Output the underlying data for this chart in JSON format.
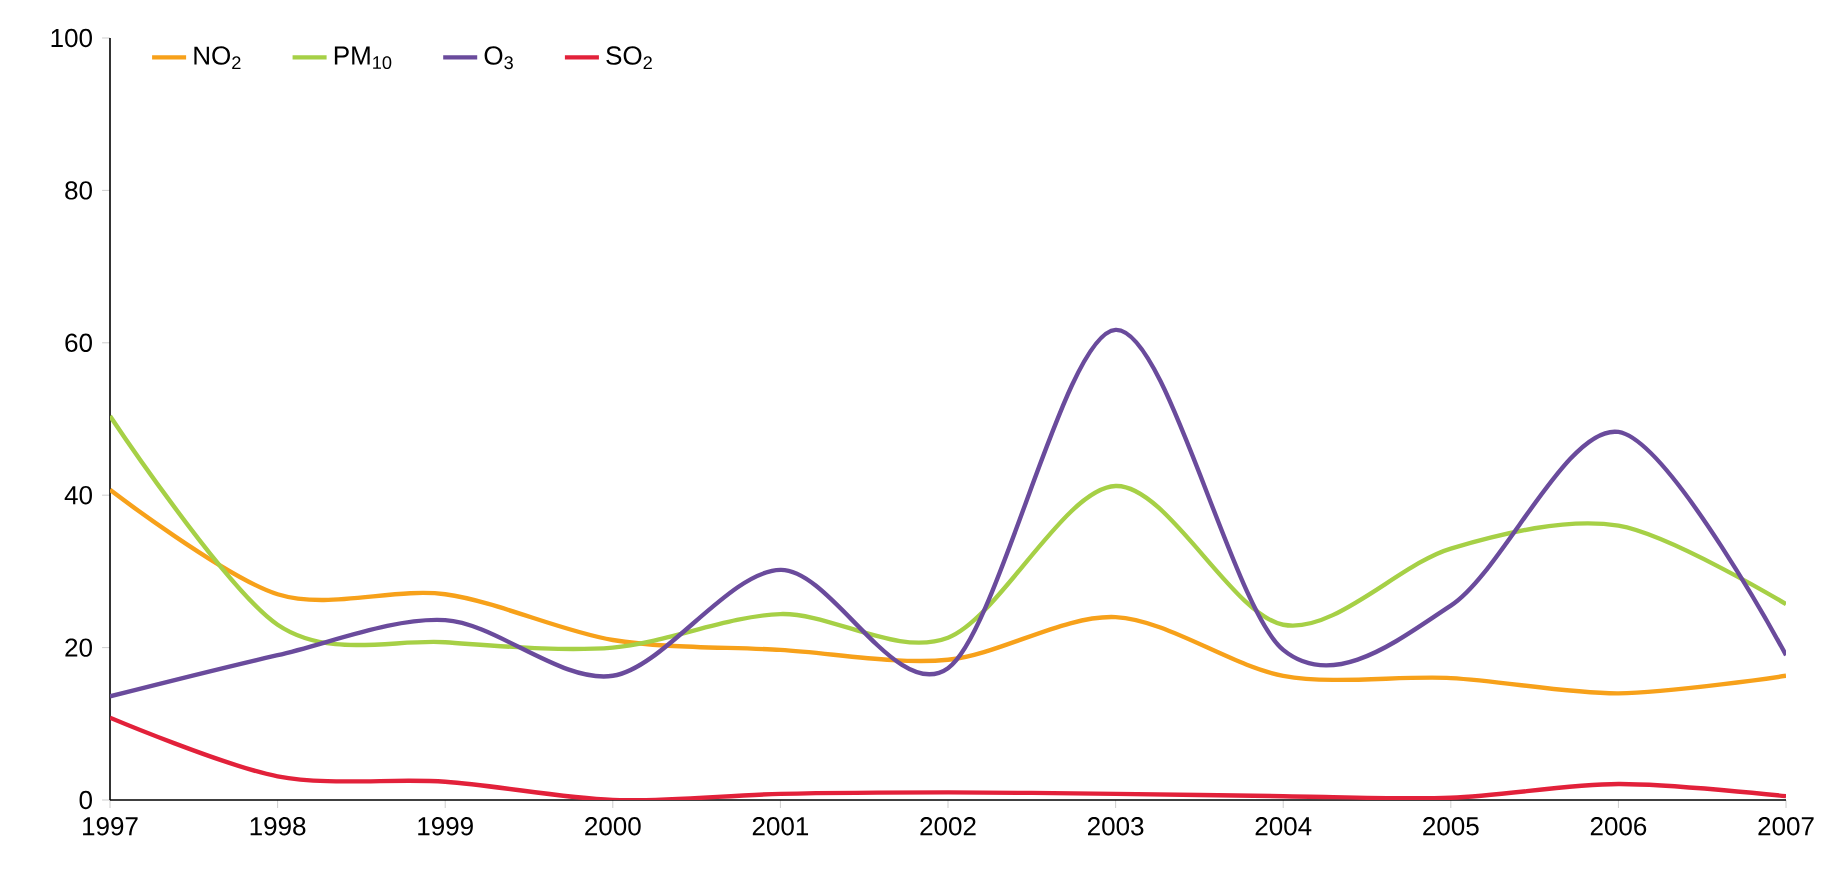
{
  "chart_data": {
    "type": "line",
    "x": [
      1997,
      1998,
      1999,
      2000,
      2001,
      2002,
      2003,
      2004,
      2005,
      2006,
      2007
    ],
    "series": [
      {
        "name": "NO$_{2}$",
        "color": "#f7a11a",
        "values": [
          40.7,
          27,
          27,
          21,
          19.7,
          18.4,
          24,
          16.3,
          16,
          14,
          16.3
        ]
      },
      {
        "name": "PM$_{10}$",
        "color": "#a6d046",
        "values": [
          50.4,
          23,
          20.7,
          20,
          24.4,
          21.3,
          41.2,
          23,
          33,
          36,
          25.7
        ]
      },
      {
        "name": "O$_{3}$",
        "color": "#6a4b9c",
        "values": [
          13.6,
          19,
          23.6,
          16.3,
          30.2,
          17.3,
          61.7,
          19.7,
          25.5,
          48.3,
          19
        ]
      },
      {
        "name": "SO$_{2}$",
        "color": "#e2213a",
        "values": [
          10.8,
          3.1,
          2.4,
          0,
          0.8,
          1,
          0.8,
          0.5,
          0.3,
          2.1,
          0.5
        ]
      }
    ],
    "xlim": [
      1997,
      2007
    ],
    "xticks": [
      1997,
      1998,
      1999,
      2000,
      2001,
      2002,
      2003,
      2004,
      2005,
      2006,
      2007
    ],
    "ylim": [
      0,
      100
    ],
    "yticks": [
      0,
      20,
      40,
      60,
      80,
      100
    ],
    "legend": "top left"
  }
}
